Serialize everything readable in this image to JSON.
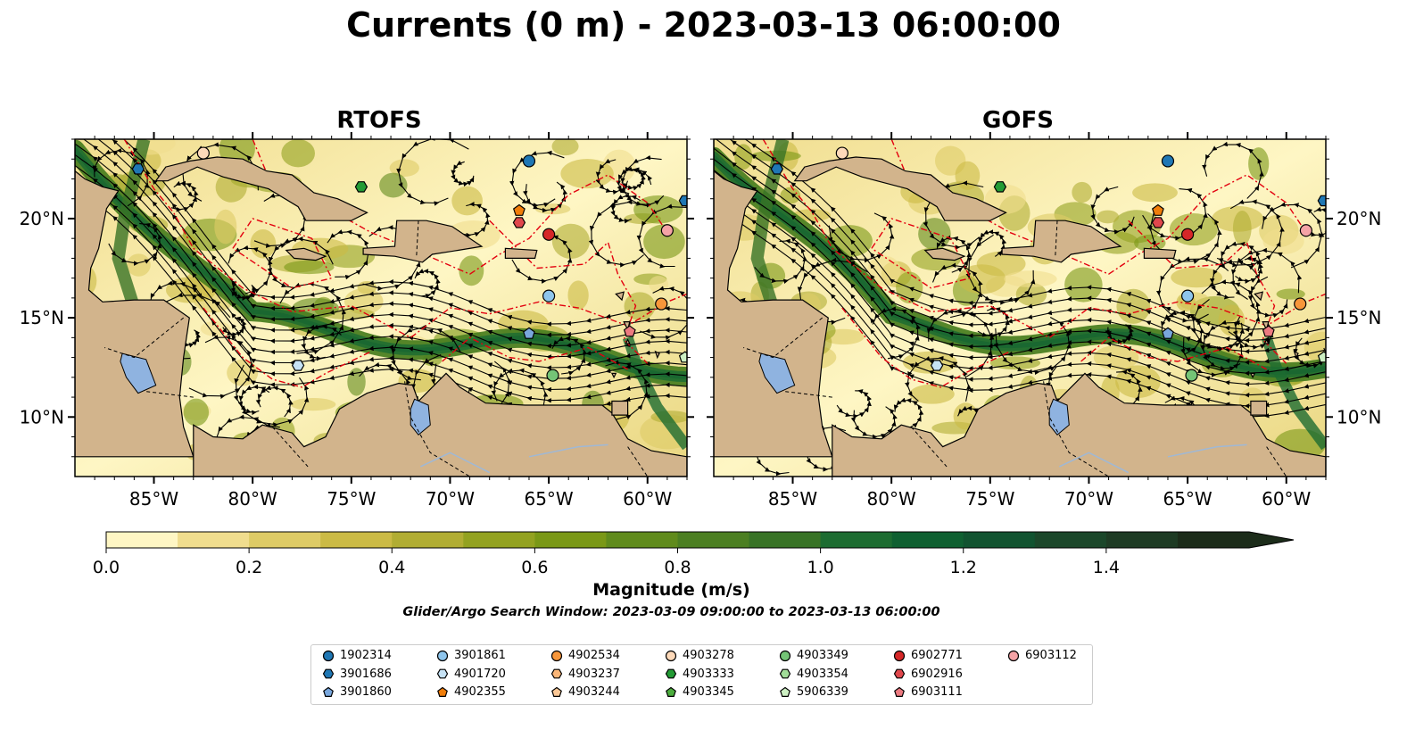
{
  "title": "Currents (0 m) - 2023-03-13 06:00:00",
  "panels": [
    {
      "title": "RTOFS"
    },
    {
      "title": "GOFS"
    }
  ],
  "map_extent": {
    "lon_min": -89,
    "lon_max": -58,
    "lat_min": 7,
    "lat_max": 24
  },
  "lon_ticks": [
    "85°W",
    "80°W",
    "75°W",
    "70°W",
    "65°W",
    "60°W"
  ],
  "lat_ticks": [
    "20°N",
    "15°N",
    "10°N"
  ],
  "colors": {
    "land": "#d2b48c",
    "lake": "#8fb3e0",
    "eez": "#e3000f",
    "stream": "#000000"
  },
  "colorbar": {
    "ticks": [
      "0.0",
      "0.2",
      "0.4",
      "0.6",
      "0.8",
      "1.0",
      "1.2",
      "1.4"
    ],
    "colors": [
      "#fef6c4",
      "#f0dd8e",
      "#decb66",
      "#cbba45",
      "#b1ad33",
      "#93a220",
      "#7a9816",
      "#608b1c",
      "#4c7f22",
      "#387326",
      "#1d6c31",
      "#0f6031",
      "#115330",
      "#1b472a",
      "#1e3b24",
      "#1c2c1a"
    ],
    "label": "Magnitude (m/s)"
  },
  "search_window": "Glider/Argo Search Window: 2023-03-09 09:00:00 to 2023-03-13 06:00:00",
  "legend": [
    {
      "id": "1902314",
      "marker": "circle",
      "color": "#1f77b4"
    },
    {
      "id": "3901686",
      "marker": "hexagon",
      "color": "#1f77b4"
    },
    {
      "id": "3901860",
      "marker": "pentagon",
      "color": "#79a7dd"
    },
    {
      "id": "3901861",
      "marker": "circle",
      "color": "#8ec5ec"
    },
    {
      "id": "4901720",
      "marker": "hexagon",
      "color": "#c6e2f5"
    },
    {
      "id": "4902355",
      "marker": "pentagon",
      "color": "#f07d0a"
    },
    {
      "id": "4902534",
      "marker": "circle",
      "color": "#f7963a"
    },
    {
      "id": "4903237",
      "marker": "hexagon",
      "color": "#fbb678"
    },
    {
      "id": "4903244",
      "marker": "pentagon",
      "color": "#fcc896"
    },
    {
      "id": "4903278",
      "marker": "circle",
      "color": "#fdd9b9"
    },
    {
      "id": "4903333",
      "marker": "hexagon",
      "color": "#239b35"
    },
    {
      "id": "4903345",
      "marker": "pentagon",
      "color": "#4cad3e"
    },
    {
      "id": "4903349",
      "marker": "circle",
      "color": "#74c476"
    },
    {
      "id": "4903354",
      "marker": "hexagon",
      "color": "#a1dc98"
    },
    {
      "id": "5906339",
      "marker": "pentagon",
      "color": "#cdf0c3"
    },
    {
      "id": "6902771",
      "marker": "circle",
      "color": "#d62728"
    },
    {
      "id": "6902916",
      "marker": "hexagon",
      "color": "#e0474c"
    },
    {
      "id": "6903111",
      "marker": "pentagon",
      "color": "#ec7a80"
    },
    {
      "id": "6903112",
      "marker": "circle",
      "color": "#f5a3a6"
    }
  ],
  "floats": {
    "rtofs": [
      {
        "id": "4903278",
        "lon": -82.5,
        "lat": 23.3
      },
      {
        "id": "3901686",
        "lon": -85.8,
        "lat": 22.5
      },
      {
        "id": "1902314",
        "lon": -66.0,
        "lat": 22.9
      },
      {
        "id": "4903333",
        "lon": -74.5,
        "lat": 21.6
      },
      {
        "id": "4902355",
        "lon": -66.5,
        "lat": 20.4
      },
      {
        "id": "6902916",
        "lon": -66.5,
        "lat": 19.8
      },
      {
        "id": "6902771",
        "lon": -65.0,
        "lat": 19.2
      },
      {
        "id": "6903112",
        "lon": -59.0,
        "lat": 19.4
      },
      {
        "id": "3901861",
        "lon": -65.0,
        "lat": 16.1
      },
      {
        "id": "4902534",
        "lon": -59.3,
        "lat": 15.7
      },
      {
        "id": "6903111",
        "lon": -60.9,
        "lat": 14.3
      },
      {
        "id": "3901860",
        "lon": -66.0,
        "lat": 14.2
      },
      {
        "id": "4901720",
        "lon": -77.7,
        "lat": 12.6
      },
      {
        "id": "4903349",
        "lon": -64.8,
        "lat": 12.1
      },
      {
        "id": "5906339",
        "lon": -58.1,
        "lat": 13.0
      },
      {
        "id": "3901686",
        "lon": -58.1,
        "lat": 20.9
      }
    ],
    "gofs": [
      {
        "id": "4903278",
        "lon": -82.5,
        "lat": 23.3
      },
      {
        "id": "3901686",
        "lon": -85.8,
        "lat": 22.5
      },
      {
        "id": "1902314",
        "lon": -66.0,
        "lat": 22.9
      },
      {
        "id": "4903333",
        "lon": -74.5,
        "lat": 21.6
      },
      {
        "id": "4902355",
        "lon": -66.5,
        "lat": 20.4
      },
      {
        "id": "6902916",
        "lon": -66.5,
        "lat": 19.8
      },
      {
        "id": "6902771",
        "lon": -65.0,
        "lat": 19.2
      },
      {
        "id": "6903112",
        "lon": -59.0,
        "lat": 19.4
      },
      {
        "id": "3901861",
        "lon": -65.0,
        "lat": 16.1
      },
      {
        "id": "4902534",
        "lon": -59.3,
        "lat": 15.7
      },
      {
        "id": "6903111",
        "lon": -60.9,
        "lat": 14.3
      },
      {
        "id": "3901860",
        "lon": -66.0,
        "lat": 14.2
      },
      {
        "id": "4901720",
        "lon": -77.7,
        "lat": 12.6
      },
      {
        "id": "4903349",
        "lon": -64.8,
        "lat": 12.1
      },
      {
        "id": "5906339",
        "lon": -58.1,
        "lat": 13.0
      },
      {
        "id": "3901686",
        "lon": -58.1,
        "lat": 20.9
      }
    ]
  }
}
